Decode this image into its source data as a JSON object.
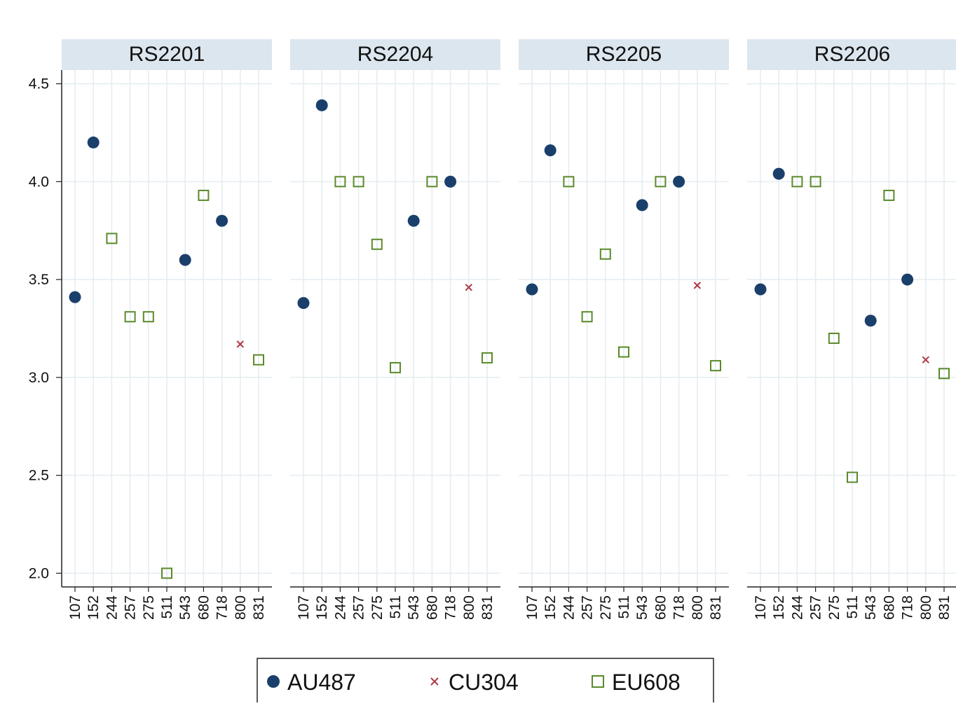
{
  "chart_data": {
    "type": "scatter",
    "ylim": [
      1.93,
      4.57
    ],
    "yticks": [
      {
        "value": 2,
        "label": "2.0"
      },
      2.5,
      {
        "value": 3,
        "label": "3.0"
      },
      3.5,
      {
        "value": 4,
        "label": "4.0"
      },
      4.5
    ],
    "grid": true,
    "categories": [
      "107",
      "152",
      "244",
      "257",
      "275",
      "511",
      "543",
      "680",
      "718",
      "800",
      "831"
    ],
    "series": [
      {
        "name": "AU487",
        "color": "#1a3f6b",
        "marker": "circle"
      },
      {
        "name": "CU304",
        "color": "#b03a48",
        "marker": "x"
      },
      {
        "name": "EU608",
        "color": "#5a8a2a",
        "marker": "square"
      }
    ],
    "panels": [
      {
        "title": "RS2201",
        "series": [
          {
            "values": [
              3.41,
              4.2,
              null,
              null,
              null,
              null,
              3.6,
              null,
              3.8,
              null,
              null
            ]
          },
          {
            "values": [
              null,
              null,
              null,
              null,
              null,
              null,
              null,
              null,
              null,
              3.17,
              null
            ]
          },
          {
            "values": [
              null,
              null,
              3.71,
              3.31,
              3.31,
              2.0,
              null,
              3.93,
              null,
              null,
              3.09
            ]
          }
        ]
      },
      {
        "title": "RS2204",
        "series": [
          {
            "values": [
              3.38,
              4.39,
              null,
              null,
              null,
              null,
              3.8,
              null,
              4.0,
              null,
              null
            ]
          },
          {
            "values": [
              null,
              null,
              null,
              null,
              null,
              null,
              null,
              null,
              null,
              3.46,
              null
            ]
          },
          {
            "values": [
              null,
              null,
              4.0,
              4.0,
              3.68,
              3.05,
              null,
              4.0,
              null,
              null,
              3.1
            ]
          }
        ]
      },
      {
        "title": "RS2205",
        "series": [
          {
            "values": [
              3.45,
              4.16,
              null,
              null,
              null,
              null,
              3.88,
              null,
              4.0,
              null,
              null
            ]
          },
          {
            "values": [
              null,
              null,
              null,
              null,
              null,
              null,
              null,
              null,
              null,
              3.47,
              null
            ]
          },
          {
            "values": [
              null,
              null,
              4.0,
              3.31,
              3.63,
              3.13,
              null,
              4.0,
              null,
              null,
              3.06
            ]
          }
        ]
      },
      {
        "title": "RS2206",
        "series": [
          {
            "values": [
              3.45,
              4.04,
              null,
              null,
              null,
              null,
              3.29,
              null,
              3.5,
              null,
              null
            ]
          },
          {
            "values": [
              null,
              null,
              null,
              null,
              null,
              null,
              null,
              null,
              null,
              3.09,
              null
            ]
          },
          {
            "values": [
              null,
              null,
              4.0,
              4.0,
              3.2,
              2.49,
              null,
              3.93,
              null,
              null,
              3.02
            ]
          }
        ]
      }
    ]
  }
}
